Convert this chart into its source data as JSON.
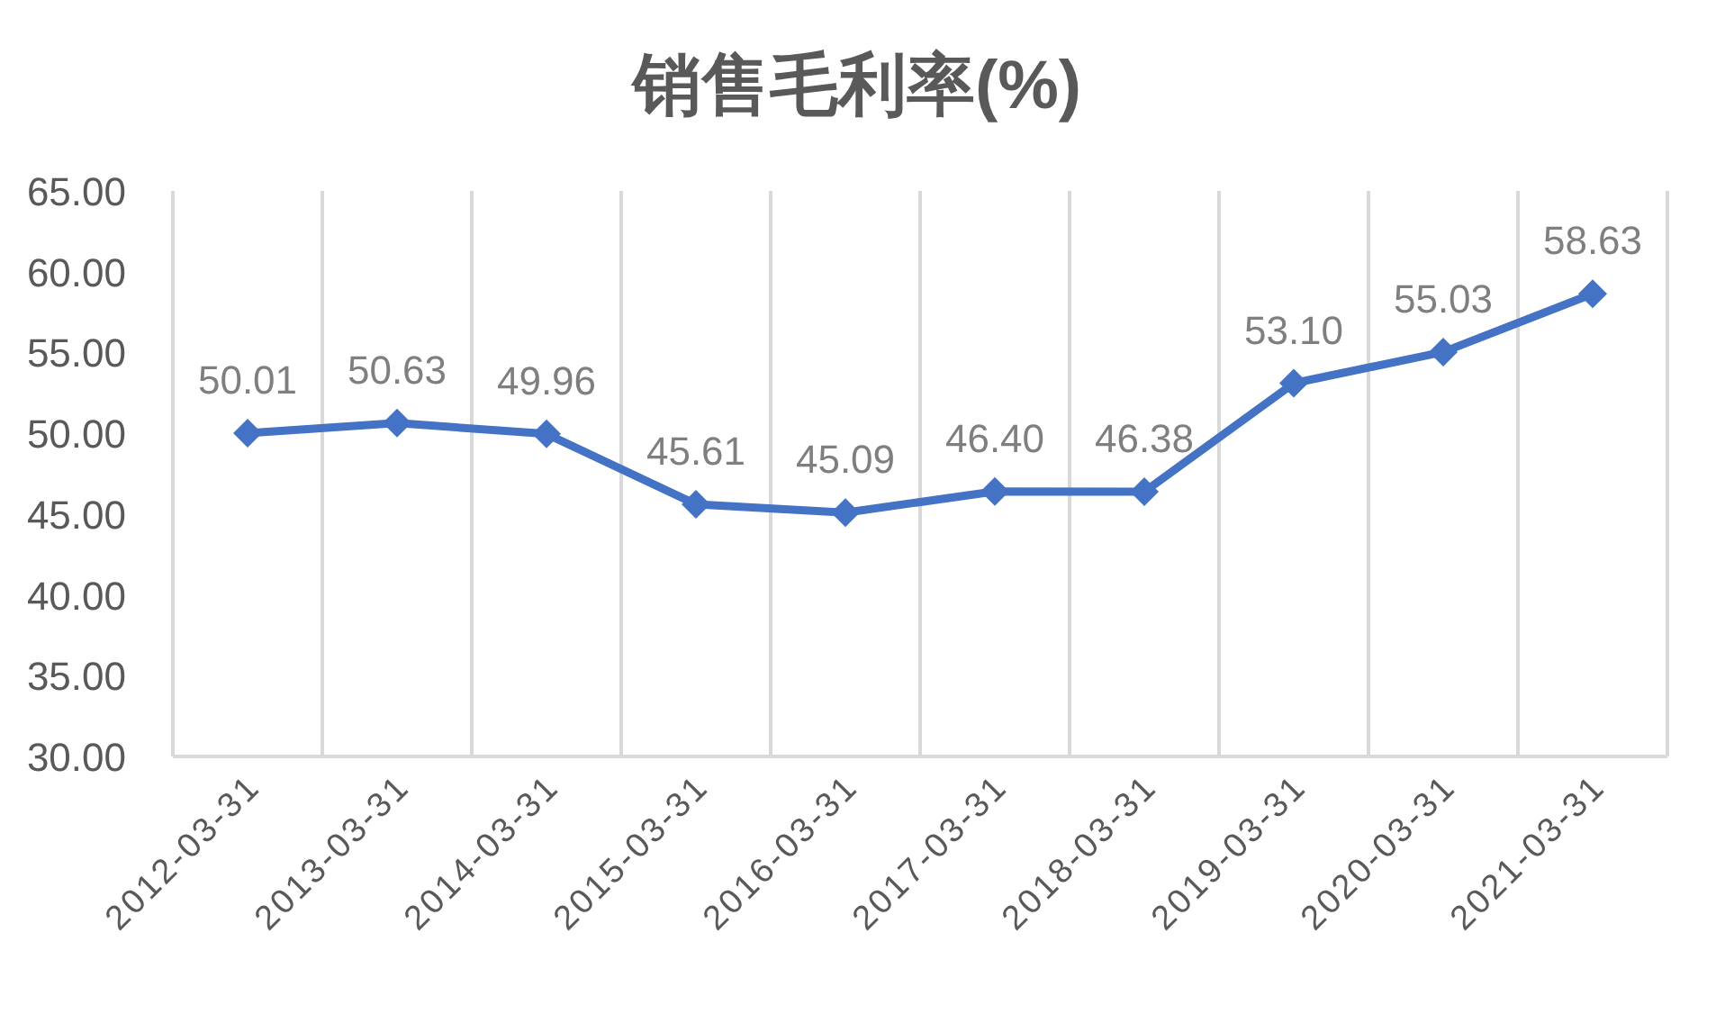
{
  "chart_data": {
    "type": "line",
    "title": "销售毛利率(%)",
    "categories": [
      "2012-03-31",
      "2013-03-31",
      "2014-03-31",
      "2015-03-31",
      "2016-03-31",
      "2017-03-31",
      "2018-03-31",
      "2019-03-31",
      "2020-03-31",
      "2021-03-31"
    ],
    "series": [
      {
        "color": "#4472c4",
        "values": [
          50.01,
          50.63,
          49.96,
          45.61,
          45.09,
          46.4,
          46.38,
          53.1,
          55.03,
          58.63
        ]
      }
    ],
    "ylim": [
      30,
      65
    ],
    "yticks": [
      {
        "value": 30,
        "label": "30.00"
      },
      {
        "value": 35,
        "label": "35.00"
      },
      {
        "value": 40,
        "label": "40.00"
      },
      {
        "value": 45,
        "label": "45.00"
      },
      {
        "value": 50,
        "label": "50.00"
      },
      {
        "value": 55,
        "label": "55.00"
      },
      {
        "value": 60,
        "label": "60.00"
      },
      {
        "value": 65,
        "label": "65.00"
      }
    ],
    "value_labels": [
      "50.01",
      "50.63",
      "49.96",
      "45.61",
      "45.09",
      "46.40",
      "46.38",
      "53.10",
      "55.03",
      "58.63"
    ],
    "grid": "x",
    "marker": "diamond",
    "line_style": "solid"
  }
}
